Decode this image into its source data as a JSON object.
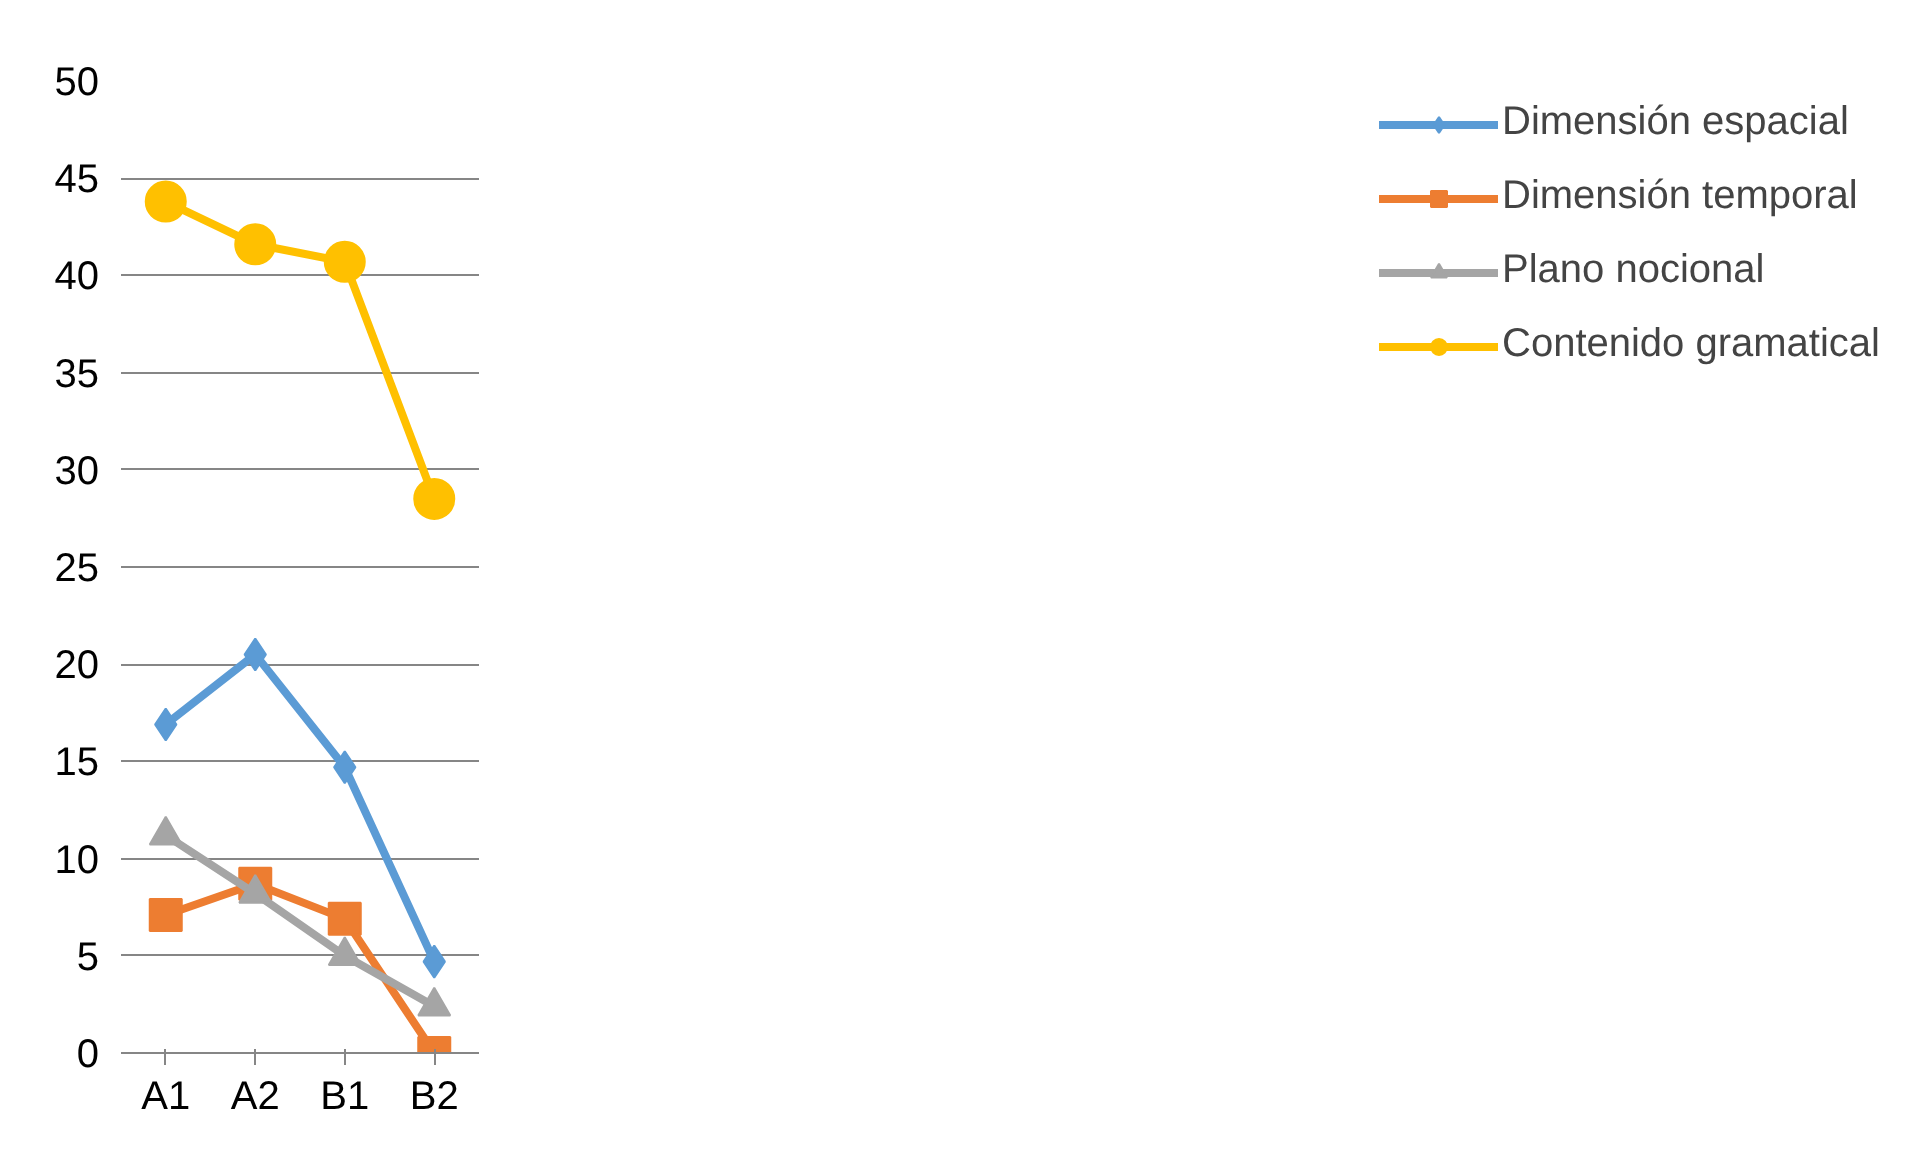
{
  "chart_data": {
    "type": "line",
    "categories": [
      "A1",
      "A2",
      "B1",
      "B2"
    ],
    "ylim": [
      0,
      50
    ],
    "yticks": [
      0,
      5,
      10,
      15,
      20,
      25,
      30,
      35,
      40,
      45,
      50
    ],
    "grid": "y",
    "legend": "right",
    "line_style": "solid",
    "series": [
      {
        "name": "Dimensión espacial",
        "color": "#5b9bd5",
        "marker": "diamond",
        "values": [
          16.9,
          20.5,
          14.7,
          4.7
        ]
      },
      {
        "name": "Dimensión temporal",
        "color": "#ed7d31",
        "marker": "square",
        "values": [
          7.1,
          8.7,
          6.9,
          0
        ]
      },
      {
        "name": "Plano nocional",
        "color": "#a5a5a5",
        "marker": "triangle",
        "values": [
          11.2,
          8.2,
          5.0,
          2.4
        ]
      },
      {
        "name": "Contenido gramatical",
        "color": "#ffc000",
        "marker": "circle",
        "values": [
          43.8,
          41.6,
          40.7,
          28.5
        ]
      }
    ]
  }
}
